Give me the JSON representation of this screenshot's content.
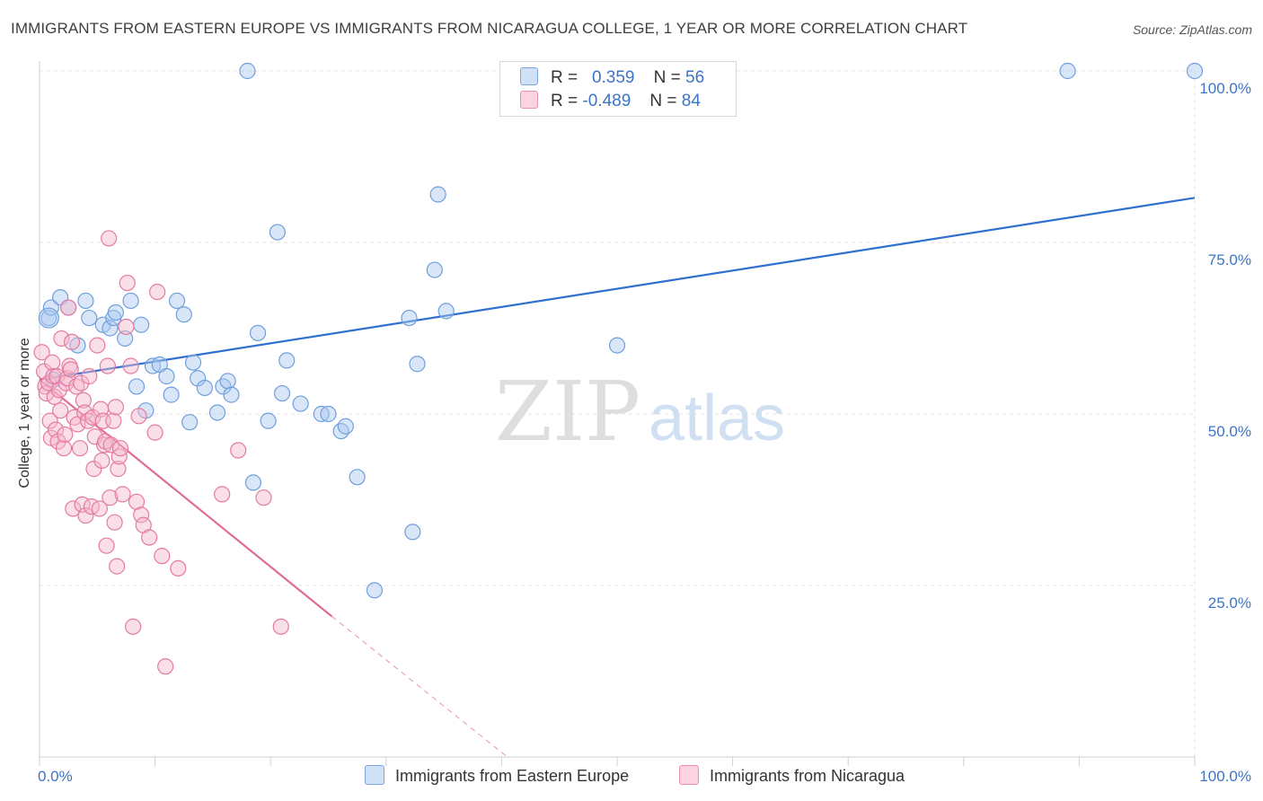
{
  "title": "IMMIGRANTS FROM EASTERN EUROPE VS IMMIGRANTS FROM NICARAGUA COLLEGE, 1 YEAR OR MORE CORRELATION CHART",
  "source": "Source: ZipAtlas.com",
  "watermark": {
    "zip": "ZIP",
    "atlas": "atlas"
  },
  "legend": {
    "rows": [
      {
        "r_label": "R =",
        "r_value": "0.359",
        "n_label": "N =",
        "n_value": "56",
        "color": "#a8c8f0"
      },
      {
        "r_label": "R =",
        "r_value": "-0.489",
        "n_label": "N =",
        "n_value": "84",
        "color": "#f5b8cb"
      }
    ]
  },
  "bottom_legend": [
    {
      "label": "Immigrants from Eastern Europe",
      "color": "#a8c8f0"
    },
    {
      "label": "Immigrants from Nicaragua",
      "color": "#f5b8cb"
    }
  ],
  "chart_data": {
    "type": "scatter",
    "title": "IMMIGRANTS FROM EASTERN EUROPE VS IMMIGRANTS FROM NICARAGUA COLLEGE, 1 YEAR OR MORE CORRELATION CHART",
    "xlabel": "",
    "ylabel": "College, 1 year or more",
    "xlim": [
      0,
      100
    ],
    "ylim": [
      0,
      100
    ],
    "x_ticks": [
      "0.0%",
      "100.0%"
    ],
    "y_ticks": [
      {
        "value": 25,
        "label": "25.0%"
      },
      {
        "value": 50,
        "label": "50.0%"
      },
      {
        "value": 75,
        "label": "75.0%"
      },
      {
        "value": 100,
        "label": "100.0%"
      }
    ],
    "grid": true,
    "legend_position": "top-center",
    "series": [
      {
        "name": "Immigrants from Eastern Europe",
        "color": "#6f9fdc",
        "fill": "#a8c8f0",
        "trend": {
          "x": [
            0,
            100
          ],
          "y": [
            55,
            81.5
          ],
          "dashed_to": null
        },
        "points": [
          [
            0.8,
            64
          ],
          [
            1,
            65.5
          ],
          [
            1.2,
            55
          ],
          [
            1.8,
            67
          ],
          [
            2.5,
            65.5
          ],
          [
            3.3,
            60
          ],
          [
            4,
            66.5
          ],
          [
            4.3,
            64
          ],
          [
            5.5,
            63
          ],
          [
            6.1,
            62.5
          ],
          [
            6.4,
            64
          ],
          [
            6.6,
            64.8
          ],
          [
            7.4,
            61
          ],
          [
            7.9,
            66.5
          ],
          [
            8.4,
            54
          ],
          [
            8.8,
            63
          ],
          [
            9.2,
            50.5
          ],
          [
            9.8,
            57
          ],
          [
            10.4,
            57.2
          ],
          [
            11,
            55.5
          ],
          [
            11.4,
            52.8
          ],
          [
            11.9,
            66.5
          ],
          [
            12.5,
            64.5
          ],
          [
            13,
            48.8
          ],
          [
            13.3,
            57.5
          ],
          [
            13.7,
            55.2
          ],
          [
            14.3,
            53.8
          ],
          [
            15.4,
            50.2
          ],
          [
            15.9,
            54
          ],
          [
            16.3,
            54.8
          ],
          [
            16.6,
            52.8
          ],
          [
            18,
            100
          ],
          [
            18.5,
            40
          ],
          [
            18.9,
            61.8
          ],
          [
            19.8,
            49
          ],
          [
            20.6,
            76.5
          ],
          [
            21,
            53
          ],
          [
            21.4,
            57.8
          ],
          [
            22.6,
            51.5
          ],
          [
            24.4,
            50
          ],
          [
            25,
            50
          ],
          [
            26.1,
            47.5
          ],
          [
            26.5,
            48.2
          ],
          [
            27.5,
            40.8
          ],
          [
            29,
            24.3
          ],
          [
            32,
            64
          ],
          [
            32.3,
            32.8
          ],
          [
            32.7,
            57.3
          ],
          [
            34.2,
            71
          ],
          [
            34.5,
            82
          ],
          [
            35.2,
            65
          ],
          [
            50,
            60
          ],
          [
            89,
            100
          ],
          [
            100,
            100
          ]
        ]
      },
      {
        "name": "Immigrants from Nicaragua",
        "color": "#e57aa0",
        "fill": "#f5b8cb",
        "trend": {
          "x": [
            0,
            25.3
          ],
          "y": [
            55,
            20.5
          ],
          "dashed_to": {
            "x": 40.5,
            "y": 0
          }
        },
        "points": [
          [
            0.2,
            59
          ],
          [
            0.4,
            56.2
          ],
          [
            0.5,
            54
          ],
          [
            0.6,
            53
          ],
          [
            0.8,
            54.5
          ],
          [
            0.9,
            49
          ],
          [
            1,
            46.5
          ],
          [
            1.1,
            57.5
          ],
          [
            1.2,
            55.5
          ],
          [
            1.3,
            52.5
          ],
          [
            1.4,
            47.7
          ],
          [
            1.5,
            55.5
          ],
          [
            1.6,
            46
          ],
          [
            1.7,
            53.5
          ],
          [
            1.8,
            50.5
          ],
          [
            1.9,
            61
          ],
          [
            2.1,
            45
          ],
          [
            2.2,
            47
          ],
          [
            2.3,
            54.5
          ],
          [
            2.4,
            55.2
          ],
          [
            2.5,
            65.5
          ],
          [
            2.6,
            57
          ],
          [
            2.7,
            56.5
          ],
          [
            2.8,
            60.5
          ],
          [
            2.9,
            36.2
          ],
          [
            3,
            49.5
          ],
          [
            3.2,
            54
          ],
          [
            3.3,
            48.5
          ],
          [
            3.5,
            45
          ],
          [
            3.6,
            54.5
          ],
          [
            3.7,
            36.8
          ],
          [
            3.8,
            52
          ],
          [
            3.9,
            50.2
          ],
          [
            4,
            35.2
          ],
          [
            4.2,
            49
          ],
          [
            4.3,
            55.5
          ],
          [
            4.5,
            36.5
          ],
          [
            4.6,
            49.5
          ],
          [
            4.7,
            42
          ],
          [
            4.8,
            46.7
          ],
          [
            5,
            60
          ],
          [
            5.2,
            36.2
          ],
          [
            5.3,
            50.7
          ],
          [
            5.4,
            43.2
          ],
          [
            5.5,
            49
          ],
          [
            5.6,
            45.5
          ],
          [
            5.7,
            46
          ],
          [
            5.8,
            30.8
          ],
          [
            5.9,
            57
          ],
          [
            6,
            75.6
          ],
          [
            6.1,
            37.8
          ],
          [
            6.2,
            45.5
          ],
          [
            6.4,
            49
          ],
          [
            6.5,
            34.2
          ],
          [
            6.6,
            51
          ],
          [
            6.7,
            27.8
          ],
          [
            6.8,
            42
          ],
          [
            6.9,
            43.8
          ],
          [
            7,
            45
          ],
          [
            7.2,
            38.3
          ],
          [
            7.5,
            62.7
          ],
          [
            7.6,
            69.1
          ],
          [
            7.9,
            57
          ],
          [
            8.1,
            19
          ],
          [
            8.4,
            37.2
          ],
          [
            8.6,
            49.7
          ],
          [
            8.8,
            35.3
          ],
          [
            9,
            33.8
          ],
          [
            9.5,
            32
          ],
          [
            10,
            47.3
          ],
          [
            10.2,
            67.8
          ],
          [
            10.6,
            29.3
          ],
          [
            10.9,
            13.2
          ],
          [
            12,
            27.5
          ],
          [
            15.8,
            38.3
          ],
          [
            17.2,
            44.7
          ],
          [
            19.4,
            37.8
          ],
          [
            20.9,
            19
          ]
        ]
      }
    ]
  }
}
